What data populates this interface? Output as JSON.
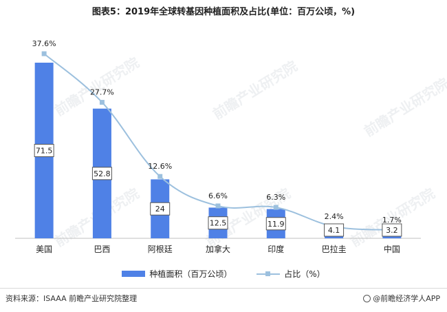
{
  "title": "图表5：2019年全球转基因种植面积及占比(单位：百万公顷，%)",
  "source": "资料来源：ISAAA 前瞻产业研究院整理",
  "brand": "@前瞻经济学人APP",
  "watermark": "前瞻产业研究院",
  "colors": {
    "bar": "#4f81e6",
    "line": "#9cc0de"
  },
  "chart_data": {
    "type": "bar",
    "categories": [
      "美国",
      "巴西",
      "阿根廷",
      "加拿大",
      "印度",
      "巴拉圭",
      "中国"
    ],
    "series": [
      {
        "name": "种植面积（百万公顷）",
        "type": "bar",
        "values": [
          71.5,
          52.8,
          24,
          12.5,
          11.9,
          4.1,
          3.2
        ]
      },
      {
        "name": "占比（%）",
        "type": "line",
        "values": [
          37.6,
          27.7,
          12.6,
          6.6,
          6.3,
          2.4,
          1.7
        ],
        "labels": [
          "37.6%",
          "27.7%",
          "12.6%",
          "6.6%",
          "6.3%",
          "2.4%",
          "1.7%"
        ]
      }
    ],
    "bar_labels": [
      "71.5",
      "52.8",
      "24",
      "12.5",
      "11.9",
      "4.1",
      "3.2"
    ],
    "ylim_bar": [
      0,
      80
    ],
    "ylim_line": [
      0,
      40
    ],
    "grid": false,
    "legend": "bottom"
  }
}
